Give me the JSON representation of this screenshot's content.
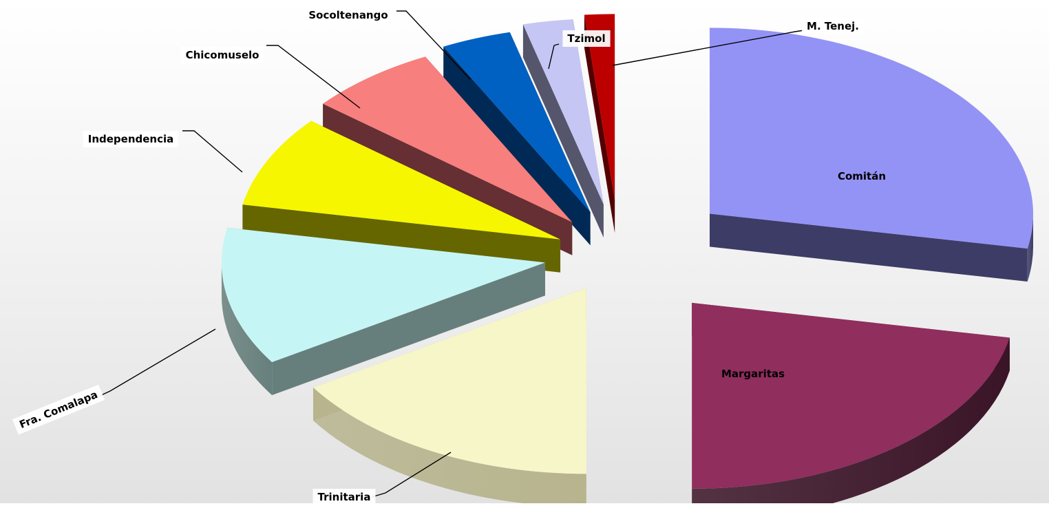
{
  "chart_data": {
    "type": "pie",
    "style": "3d-exploded",
    "title": "",
    "legend": "none",
    "slices": [
      {
        "label": "Comitán",
        "value": 28,
        "color": "#9393f5",
        "side": "#3d3c66",
        "label_style": "inside",
        "label_text_color": "#ffffff"
      },
      {
        "label": "Margaritas",
        "value": 22,
        "color": "#902e5e",
        "side": "#3a1427",
        "label_style": "inside",
        "label_text_color": "#ffffff"
      },
      {
        "label": "Trinitaria",
        "value": 16,
        "color": "#f6f6c8",
        "side": "#b7b48e",
        "label_style": "callout",
        "label_text_color": "#000000"
      },
      {
        "label": "Fra. Comalapa",
        "value": 12,
        "color": "#c6f5f5",
        "side": "#677f7c",
        "label_style": "callout-rotated",
        "label_text_color": "#000000"
      },
      {
        "label": "Independencia",
        "value": 8,
        "color": "#f6f600",
        "side": "#666600",
        "label_style": "callout",
        "label_text_color": "#000000"
      },
      {
        "label": "Chicomuselo",
        "value": 6.5,
        "color": "#f77f7e",
        "side": "#652f33",
        "label_style": "callout",
        "label_text_color": "#000000"
      },
      {
        "label": "Socoltenango",
        "value": 3.5,
        "color": "#0061c2",
        "side": "#002a55",
        "label_style": "callout",
        "label_text_color": "#000000"
      },
      {
        "label": "Tzimol",
        "value": 2.5,
        "color": "#c6c6f5",
        "side": "#55566c",
        "label_style": "callout",
        "label_text_color": "#000000"
      },
      {
        "label": "M. Tenej.",
        "value": 1.5,
        "color": "#bc0000",
        "side": "#550000",
        "label_style": "callout",
        "label_text_color": "#000000"
      }
    ]
  }
}
